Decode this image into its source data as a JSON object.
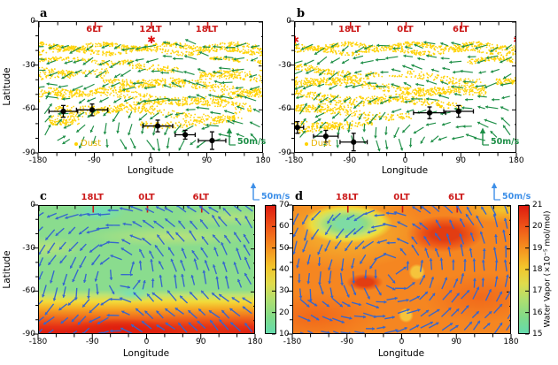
{
  "panels": {
    "a": {
      "letter": "a",
      "ylabel": "Latitude",
      "xlabel": "Longitude",
      "x_tick_labels": [
        "-180",
        "-90",
        "0",
        "90",
        "180"
      ],
      "y_tick_labels": [
        "0",
        "-30",
        "-60",
        "-90"
      ],
      "lt_labels": [
        {
          "text": "6LT",
          "lon": -90
        },
        {
          "text": "12LT",
          "lon": 0
        },
        {
          "text": "18LT",
          "lon": 90
        }
      ],
      "star_lons": [
        0
      ],
      "dust_legend": "Dust",
      "wind_scale_label": "50m/s"
    },
    "b": {
      "letter": "b",
      "xlabel": "Longitude",
      "x_tick_labels": [
        "-180",
        "-90",
        "0",
        "90",
        "180"
      ],
      "y_tick_labels": [
        "0",
        "-30",
        "-60",
        "-90"
      ],
      "lt_labels": [
        {
          "text": "18LT",
          "lon": -90
        },
        {
          "text": "0LT",
          "lon": 0
        },
        {
          "text": "6LT",
          "lon": 90
        }
      ],
      "star_lons": [
        -180,
        180
      ],
      "dust_legend": "Dust",
      "wind_scale_label": "50m/s"
    },
    "c": {
      "letter": "c",
      "ylabel": "Latitude",
      "xlabel": "Longitude",
      "x_tick_labels": [
        "-180",
        "-90",
        "0",
        "90",
        "180"
      ],
      "y_tick_labels": [
        "0",
        "-30",
        "-60",
        "-90"
      ],
      "lt_labels": [
        {
          "text": "18LT",
          "lon": -90
        },
        {
          "text": "0LT",
          "lon": 0
        },
        {
          "text": "6LT",
          "lon": 90
        }
      ],
      "wind_scale_label": "50m/s",
      "colorbar_tick_labels": [
        "70",
        "60",
        "50",
        "40",
        "30",
        "20",
        "10"
      ]
    },
    "d": {
      "letter": "d",
      "xlabel": "Longitude",
      "x_tick_labels": [
        "-180",
        "-90",
        "0",
        "90",
        "180"
      ],
      "lt_labels": [
        {
          "text": "18LT",
          "lon": -90
        },
        {
          "text": "0LT",
          "lon": 0
        },
        {
          "text": "6LT",
          "lon": 90
        }
      ],
      "wind_scale_label": "50m/s",
      "colorbar_tick_labels": [
        "21",
        "20",
        "19",
        "18",
        "17",
        "16",
        "15"
      ],
      "colorbar_label": "Water Vapor (×10⁻⁵ mol/mol)"
    }
  },
  "colors": {
    "dust": "#FFD200",
    "wind_top": "#1E8F47",
    "wind_bottom": "#3566CE",
    "lt_red": "#CC1A1A",
    "star_red": "#E01212",
    "scale_blue": "#3D8FE8",
    "marker": "#000000"
  },
  "chart_data": [
    {
      "panel": "a",
      "type": "scatter",
      "xlabel": "Longitude",
      "ylabel": "Latitude",
      "x_range": [
        -180,
        180
      ],
      "y_range": [
        -90,
        0
      ],
      "layers": [
        "dust occurrence (yellow dots)",
        "wind vectors (green arrows, 50 m/s scale)",
        "measurements with error bars (black)"
      ],
      "local_time_ticks": [
        {
          "label": "6LT",
          "lon": -90
        },
        {
          "label": "12LT",
          "lon": 0
        },
        {
          "label": "18LT",
          "lon": 90
        }
      ],
      "star_marker_lons": [
        0
      ],
      "measured_points": [
        {
          "lon": -141,
          "lat": -61,
          "lon_err": 23,
          "lat_err": 4
        },
        {
          "lon": -95,
          "lat": -60,
          "lon_err": 25,
          "lat_err": 4
        },
        {
          "lon": 10,
          "lat": -71,
          "lon_err": 24,
          "lat_err": 4
        },
        {
          "lon": 54,
          "lat": -77,
          "lon_err": 16,
          "lat_err": 3
        },
        {
          "lon": 97,
          "lat": -81,
          "lon_err": 22,
          "lat_err": 6
        }
      ]
    },
    {
      "panel": "b",
      "type": "scatter",
      "xlabel": "Longitude",
      "x_range": [
        -180,
        180
      ],
      "y_range": [
        -90,
        0
      ],
      "layers": [
        "dust occurrence (yellow dots)",
        "wind vectors (green arrows, 50 m/s scale)",
        "measurements with error bars (black)"
      ],
      "local_time_ticks": [
        {
          "label": "18LT",
          "lon": -90
        },
        {
          "label": "0LT",
          "lon": 0
        },
        {
          "label": "6LT",
          "lon": 90
        }
      ],
      "star_marker_lons": [
        -180,
        180
      ],
      "measured_points": [
        {
          "lon": -176,
          "lat": -72,
          "lon_err": 10,
          "lat_err": 4
        },
        {
          "lon": -130,
          "lat": -78,
          "lon_err": 20,
          "lat_err": 4
        },
        {
          "lon": -85,
          "lat": -82,
          "lon_err": 22,
          "lat_err": 6
        },
        {
          "lon": 38,
          "lat": -62,
          "lon_err": 26,
          "lat_err": 4
        },
        {
          "lon": 85,
          "lat": -61,
          "lon_err": 24,
          "lat_err": 4
        }
      ]
    },
    {
      "panel": "c",
      "type": "heatmap",
      "xlabel": "Longitude",
      "ylabel": "Latitude",
      "x_range": [
        -180,
        180
      ],
      "y_range": [
        -90,
        0
      ],
      "colorbar_range": [
        10,
        70
      ],
      "colorbar_ticks": [
        10,
        20,
        30,
        40,
        50,
        60,
        70
      ],
      "local_time_ticks": [
        {
          "label": "18LT",
          "lon": -90
        },
        {
          "label": "0LT",
          "lon": 0
        },
        {
          "label": "6LT",
          "lon": 90
        }
      ],
      "description": "Background field 25-35 with small cyan minima (~15) near lon -80 lat -4 and lon -25 lat -62; values rise sharply poleward of lat -65 reaching 60-70 at the pole; blue wind vectors overlaid (50 m/s scale)."
    },
    {
      "panel": "d",
      "type": "heatmap",
      "xlabel": "Longitude",
      "x_range": [
        -180,
        180
      ],
      "y_range": [
        -90,
        0
      ],
      "colorbar_range": [
        15,
        21
      ],
      "colorbar_ticks": [
        15,
        16,
        17,
        18,
        19,
        20,
        21
      ],
      "colorbar_label": "Water Vapor (×10⁻⁵ mol/mol)",
      "local_time_ticks": [
        {
          "label": "18LT",
          "lon": -90
        },
        {
          "label": "0LT",
          "lon": 0
        },
        {
          "label": "6LT",
          "lon": 90
        }
      ],
      "description": "Background ~19 (orange) with minimum ~16 (green) near 18LT lon -90 lat -10 to -30, maxima ~20-21 near lon 70 lat -20 and lon -60 lat -54; blue wind vectors overlaid (50 m/s scale)."
    }
  ]
}
